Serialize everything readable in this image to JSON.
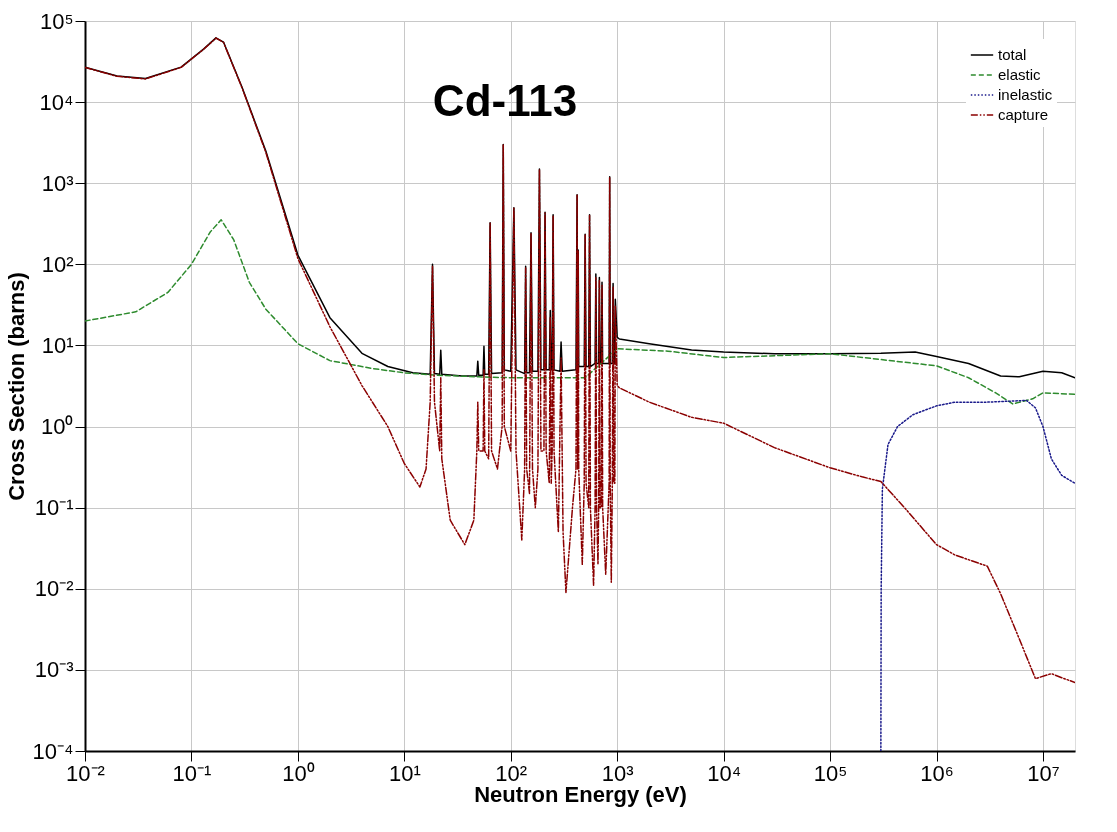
{
  "chart_data": {
    "type": "line",
    "title": "Cd-113",
    "xlabel": "Neutron Energy (eV)",
    "ylabel": "Cross Section (barns)",
    "log": "xy",
    "grid": true,
    "legend": "top right",
    "xlim": [
      0.01,
      20000000
    ],
    "xticks": [
      {
        "value": 0.01,
        "label": "10⁻²"
      },
      {
        "value": 0.1,
        "label": "10⁻¹"
      },
      {
        "value": 1,
        "label": "10⁰"
      },
      {
        "value": 10,
        "label": "10¹"
      },
      {
        "value": 100,
        "label": "10²"
      },
      {
        "value": 1000,
        "label": "10³"
      },
      {
        "value": 10000,
        "label": "10⁴"
      },
      {
        "value": 100000,
        "label": "10⁵"
      },
      {
        "value": 1000000,
        "label": "10⁶"
      },
      {
        "value": 10000000,
        "label": "10⁷"
      }
    ],
    "ylim": [
      0.0001,
      100000
    ],
    "yticks": [
      {
        "value": 0.0001,
        "label": "10⁻⁴"
      },
      {
        "value": 0.001,
        "label": "10⁻³"
      },
      {
        "value": 0.01,
        "label": "10⁻²"
      },
      {
        "value": 0.1,
        "label": "10⁻¹"
      },
      {
        "value": 1,
        "label": "10⁰"
      },
      {
        "value": 10,
        "label": "10¹"
      },
      {
        "value": 100,
        "label": "10²"
      },
      {
        "value": 1000,
        "label": "10³"
      },
      {
        "value": 10000,
        "label": "10⁴"
      },
      {
        "value": 100000,
        "label": "10⁵"
      }
    ],
    "series": [
      {
        "name": "total",
        "color": "#000000",
        "line_style": "solid",
        "x": [
          0.01,
          0.02,
          0.037,
          0.08,
          0.13,
          0.17,
          0.2,
          0.3,
          0.5,
          1,
          2,
          4,
          7,
          12,
          17.5,
          18.4,
          19.2,
          21.5,
          22,
          22.5,
          35,
          48,
          49,
          50,
          55,
          56,
          57,
          62,
          64,
          66,
          83,
          85,
          87,
          100,
          107,
          112,
          135,
          138,
          141,
          150,
          155,
          160,
          180,
          186,
          192,
          205,
          210,
          215,
          230,
          235,
          240,
          245,
          250,
          255,
          290,
          297,
          305,
          410,
          420,
          425,
          430,
          435,
          490,
          500,
          510,
          540,
          550,
          560,
          620,
          630,
          640,
          670,
          680,
          690,
          710,
          720,
          730,
          840,
          850,
          860,
          900,
          915,
          930,
          950,
          960,
          1000,
          1050,
          2000,
          5000,
          10000,
          30000,
          100000,
          300000,
          630000,
          1000000,
          2000000,
          4000000,
          6000000,
          10000000,
          15000000,
          20000000
        ],
        "values": [
          27000,
          21000,
          19500,
          27000,
          45000,
          62000,
          55000,
          15000,
          2500,
          130,
          22,
          8,
          5.5,
          4.6,
          4.4,
          100,
          4.5,
          4.4,
          8.7,
          4.4,
          4.2,
          4.2,
          6.4,
          4.3,
          4.3,
          9.8,
          4.4,
          4.4,
          325,
          4.5,
          4.6,
          3000,
          5,
          4.8,
          500,
          5,
          4.5,
          95,
          4.6,
          4.6,
          245,
          4.8,
          4.8,
          1500,
          5,
          5,
          440,
          5,
          5,
          27,
          5,
          5,
          410,
          5,
          4.8,
          11,
          4.8,
          5,
          720,
          5,
          150,
          5.5,
          5.5,
          235,
          5.5,
          5.5,
          410,
          5.5,
          6,
          76,
          6,
          6,
          69,
          6,
          6,
          60,
          6,
          6,
          1200,
          6,
          6,
          58,
          6,
          6,
          37,
          12.6,
          12,
          10.5,
          8.8,
          8.3,
          7.9,
          7.9,
          8,
          8.3,
          7.3,
          6,
          4.2,
          4.1,
          4.8,
          4.6,
          4
        ]
      },
      {
        "name": "elastic",
        "color": "#2e8b2e",
        "line_style": "dashed",
        "x": [
          0.01,
          0.03,
          0.06,
          0.1,
          0.15,
          0.19,
          0.25,
          0.35,
          0.5,
          1,
          2,
          5,
          10,
          20,
          50,
          100,
          200,
          500,
          1000,
          3000,
          10000,
          100000,
          1000000,
          2000000,
          3600000,
          5200000,
          8000000,
          10000000,
          20000000
        ],
        "values": [
          20,
          26,
          45,
          100,
          250,
          355,
          200,
          60,
          28,
          10.5,
          6.5,
          5.2,
          4.6,
          4.3,
          4.1,
          4,
          4,
          4,
          9.1,
          8.5,
          7.1,
          7.9,
          5.6,
          4,
          2.6,
          1.9,
          2.2,
          2.6,
          2.5
        ]
      },
      {
        "name": "inelastic",
        "color": "#1a1a8b",
        "line_style": "dotted",
        "x": [
          300000,
          302000,
          310000,
          350000,
          430000,
          600000,
          1000000,
          1500000,
          3000000,
          7000000,
          8500000,
          10000000,
          12000000,
          15000000,
          20000000
        ],
        "values": [
          0.0001,
          0.01,
          0.17,
          0.6,
          1.0,
          1.4,
          1.8,
          2.0,
          2.0,
          2.1,
          1.7,
          1.0,
          0.4,
          0.25,
          0.2
        ]
      },
      {
        "name": "capture",
        "color": "#8b0000",
        "line_style": "dashdot",
        "x": [
          0.01,
          0.02,
          0.037,
          0.08,
          0.13,
          0.17,
          0.2,
          0.3,
          0.5,
          1,
          2,
          4,
          7,
          10,
          14,
          16,
          17.5,
          18.4,
          19.2,
          21.5,
          22,
          22.5,
          27,
          37,
          45,
          48,
          49,
          50,
          55,
          56,
          57,
          62,
          64,
          66,
          75,
          83,
          85,
          87,
          100,
          107,
          112,
          127,
          135,
          138,
          141,
          150,
          155,
          160,
          170,
          180,
          186,
          192,
          205,
          210,
          215,
          230,
          235,
          240,
          245,
          250,
          255,
          280,
          297,
          310,
          330,
          380,
          410,
          420,
          425,
          430,
          435,
          470,
          490,
          500,
          510,
          540,
          550,
          560,
          600,
          620,
          630,
          640,
          660,
          670,
          680,
          690,
          710,
          720,
          730,
          780,
          840,
          850,
          860,
          880,
          900,
          915,
          930,
          950,
          960,
          1000,
          1050,
          2000,
          5000,
          10000,
          30000,
          100000,
          200000,
          300000,
          500000,
          1000000,
          1500000,
          3000000,
          4000000,
          6000000,
          8500000,
          12000000,
          15000000,
          20000000
        ],
        "values": [
          26800,
          20800,
          19300,
          26800,
          44800,
          61500,
          54600,
          14800,
          2400,
          118,
          17,
          3.2,
          1.0,
          0.35,
          0.18,
          0.3,
          2,
          95,
          2,
          0.5,
          4,
          0.4,
          0.07,
          0.035,
          0.07,
          0.5,
          2,
          0.5,
          0.5,
          5,
          0.5,
          0.4,
          320,
          0.5,
          0.3,
          1,
          2950,
          1,
          0.5,
          490,
          0.5,
          0.04,
          0.3,
          90,
          0.3,
          0.15,
          240,
          0.3,
          0.1,
          0.3,
          1480,
          0.5,
          0.5,
          430,
          0.5,
          0.2,
          22,
          0.2,
          0.5,
          400,
          0.5,
          0.05,
          7,
          0.05,
          0.009,
          0.1,
          0.3,
          710,
          0.3,
          145,
          0.3,
          0.02,
          0.2,
          230,
          0.2,
          0.1,
          400,
          0.1,
          0.011,
          0.1,
          70,
          0.1,
          0.02,
          0.1,
          63,
          0.1,
          0.1,
          55,
          0.1,
          0.015,
          0.2,
          1190,
          0.2,
          0.012,
          0.2,
          52,
          0.2,
          0.2,
          31,
          3.2,
          3,
          2,
          1.3,
          1.1,
          0.55,
          0.31,
          0.24,
          0.21,
          0.1,
          0.035,
          0.026,
          0.019,
          0.0087,
          0.0024,
          0.00078,
          0.0009,
          0.0008,
          0.0007
        ]
      }
    ]
  }
}
